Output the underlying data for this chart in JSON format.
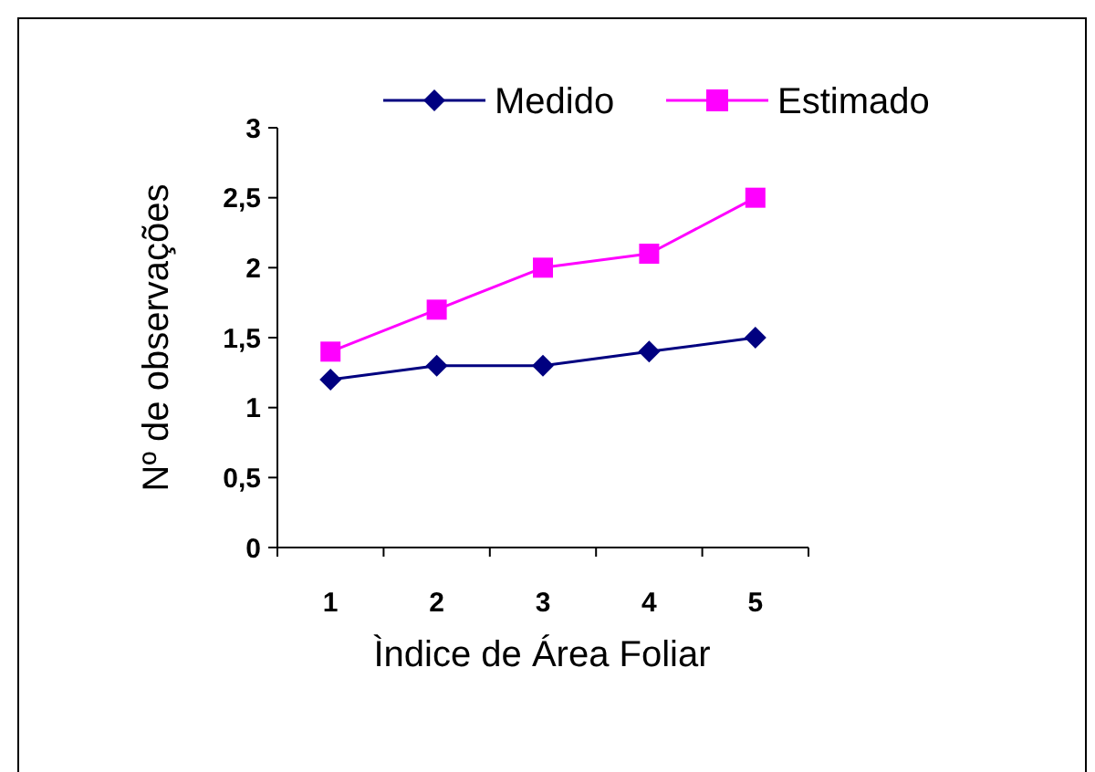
{
  "chart_data": {
    "type": "line",
    "xlabel": "Ìndice de Área Foliar",
    "ylabel": "Nº de observações",
    "categories": [
      "1",
      "2",
      "3",
      "4",
      "5"
    ],
    "series": [
      {
        "name": "Medido",
        "color": "#000080",
        "marker": "diamond",
        "values": [
          1.2,
          1.3,
          1.3,
          1.4,
          1.5
        ]
      },
      {
        "name": "Estimado",
        "color": "#ff00ff",
        "marker": "square",
        "values": [
          1.4,
          1.7,
          2.0,
          2.1,
          2.5
        ]
      }
    ],
    "ylim": [
      0,
      3
    ],
    "yticks": [
      0,
      {
        "value": 0.5,
        "label": "0,5"
      },
      1,
      {
        "value": 1.5,
        "label": "1,5"
      },
      2,
      {
        "value": 2.5,
        "label": "2,5"
      },
      3
    ],
    "grid": false,
    "legend": "top right",
    "line_style": "solid"
  }
}
